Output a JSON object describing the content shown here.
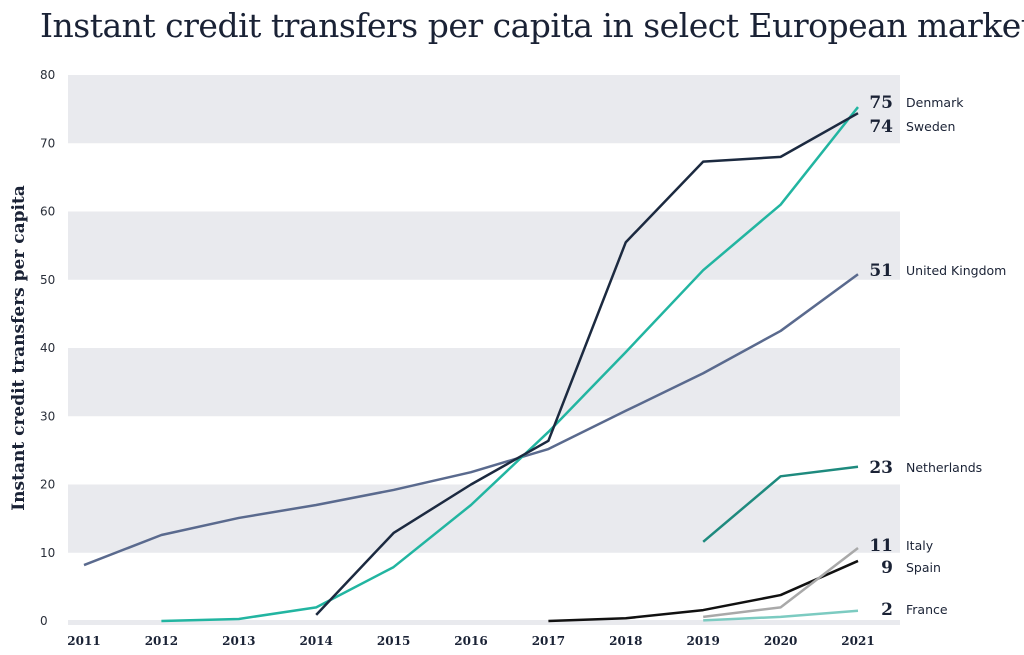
{
  "chart_data": {
    "type": "line",
    "title": "Instant credit transfers per capita in select European markets",
    "xlabel": "",
    "ylabel": "Instant credit transfers per capita",
    "ylim": [
      0,
      80
    ],
    "yticks": [
      "0",
      "10",
      "20",
      "30",
      "40",
      "50",
      "60",
      "70",
      "80"
    ],
    "x": [
      2011,
      2012,
      2013,
      2014,
      2015,
      2016,
      2017,
      2018,
      2019,
      2020,
      2021
    ],
    "xticks": [
      "2011",
      "2012",
      "2013",
      "2014",
      "2015",
      "2016",
      "2017",
      "2018",
      "2019",
      "2020",
      "2021"
    ],
    "grid": "alternating horizontal bands",
    "legend": "direct labels at right",
    "series": [
      {
        "name": "Denmark",
        "end_label": "75",
        "color": "#22b5a1",
        "values": [
          null,
          0,
          0.3,
          2,
          7.9,
          17,
          27.7,
          39.4,
          51.4,
          61,
          75.3
        ]
      },
      {
        "name": "Sweden",
        "end_label": "74",
        "color": "#1c2a40",
        "values": [
          null,
          null,
          null,
          0.9,
          12.9,
          20,
          26.4,
          55.5,
          67.3,
          68,
          74.4
        ]
      },
      {
        "name": "United Kingdom",
        "end_label": "51",
        "color": "#5a6a8e",
        "values": [
          8.2,
          12.6,
          15.1,
          17,
          19.2,
          21.8,
          25.2,
          30.8,
          36.3,
          42.5,
          50.8
        ]
      },
      {
        "name": "Netherlands",
        "end_label": "23",
        "color": "#1e8a7e",
        "values": [
          null,
          null,
          null,
          null,
          null,
          null,
          null,
          null,
          11.6,
          21.2,
          22.6
        ]
      },
      {
        "name": "Italy",
        "end_label": "11",
        "color": "#a9a9a9",
        "values": [
          null,
          null,
          null,
          null,
          null,
          null,
          null,
          null,
          0.6,
          2,
          10.7
        ]
      },
      {
        "name": "Spain",
        "end_label": "9",
        "color": "#111111",
        "values": [
          null,
          null,
          null,
          null,
          null,
          null,
          0,
          0.4,
          1.6,
          3.8,
          8.8
        ]
      },
      {
        "name": "France",
        "end_label": "2",
        "color": "#7ccbc1",
        "values": [
          null,
          null,
          null,
          null,
          null,
          null,
          null,
          null,
          0.1,
          0.6,
          1.5
        ]
      }
    ]
  }
}
